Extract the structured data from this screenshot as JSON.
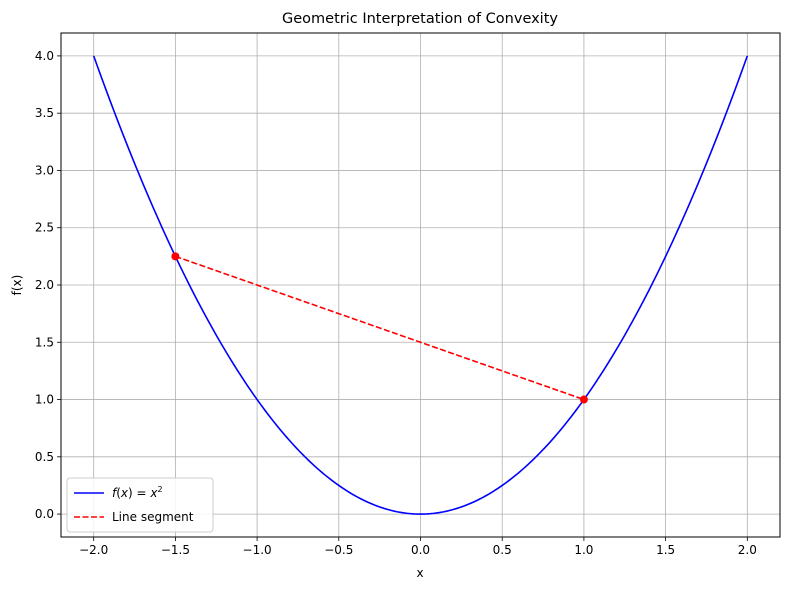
{
  "chart_data": {
    "type": "line",
    "title": "Geometric Interpretation of Convexity",
    "xlabel": "x",
    "ylabel": "f(x)",
    "xlim": [
      -2.2,
      2.2
    ],
    "ylim": [
      -0.2,
      4.2
    ],
    "xticks": [
      -2.0,
      -1.5,
      -1.0,
      -0.5,
      0.0,
      0.5,
      1.0,
      1.5,
      2.0
    ],
    "xtick_labels": [
      "−2.0",
      "−1.5",
      "−1.0",
      "−0.5",
      "0.0",
      "0.5",
      "1.0",
      "1.5",
      "2.0"
    ],
    "yticks": [
      0.0,
      0.5,
      1.0,
      1.5,
      2.0,
      2.5,
      3.0,
      3.5,
      4.0
    ],
    "ytick_labels": [
      "0.0",
      "0.5",
      "1.0",
      "1.5",
      "2.0",
      "2.5",
      "3.0",
      "3.5",
      "4.0"
    ],
    "grid": true,
    "legend_position": "lower-left",
    "series": [
      {
        "name": "f(x) = x²",
        "name_base": "f",
        "name_var": "x",
        "name_exp": "2",
        "style": "solid",
        "color": "#0000ff",
        "function": "x^2",
        "x_range": [
          -2.0,
          2.0
        ]
      },
      {
        "name": "Line segment",
        "style": "dashed",
        "color": "#ff0000",
        "markers": true,
        "x": [
          -1.5,
          1.0
        ],
        "y": [
          2.25,
          1.0
        ]
      }
    ]
  }
}
